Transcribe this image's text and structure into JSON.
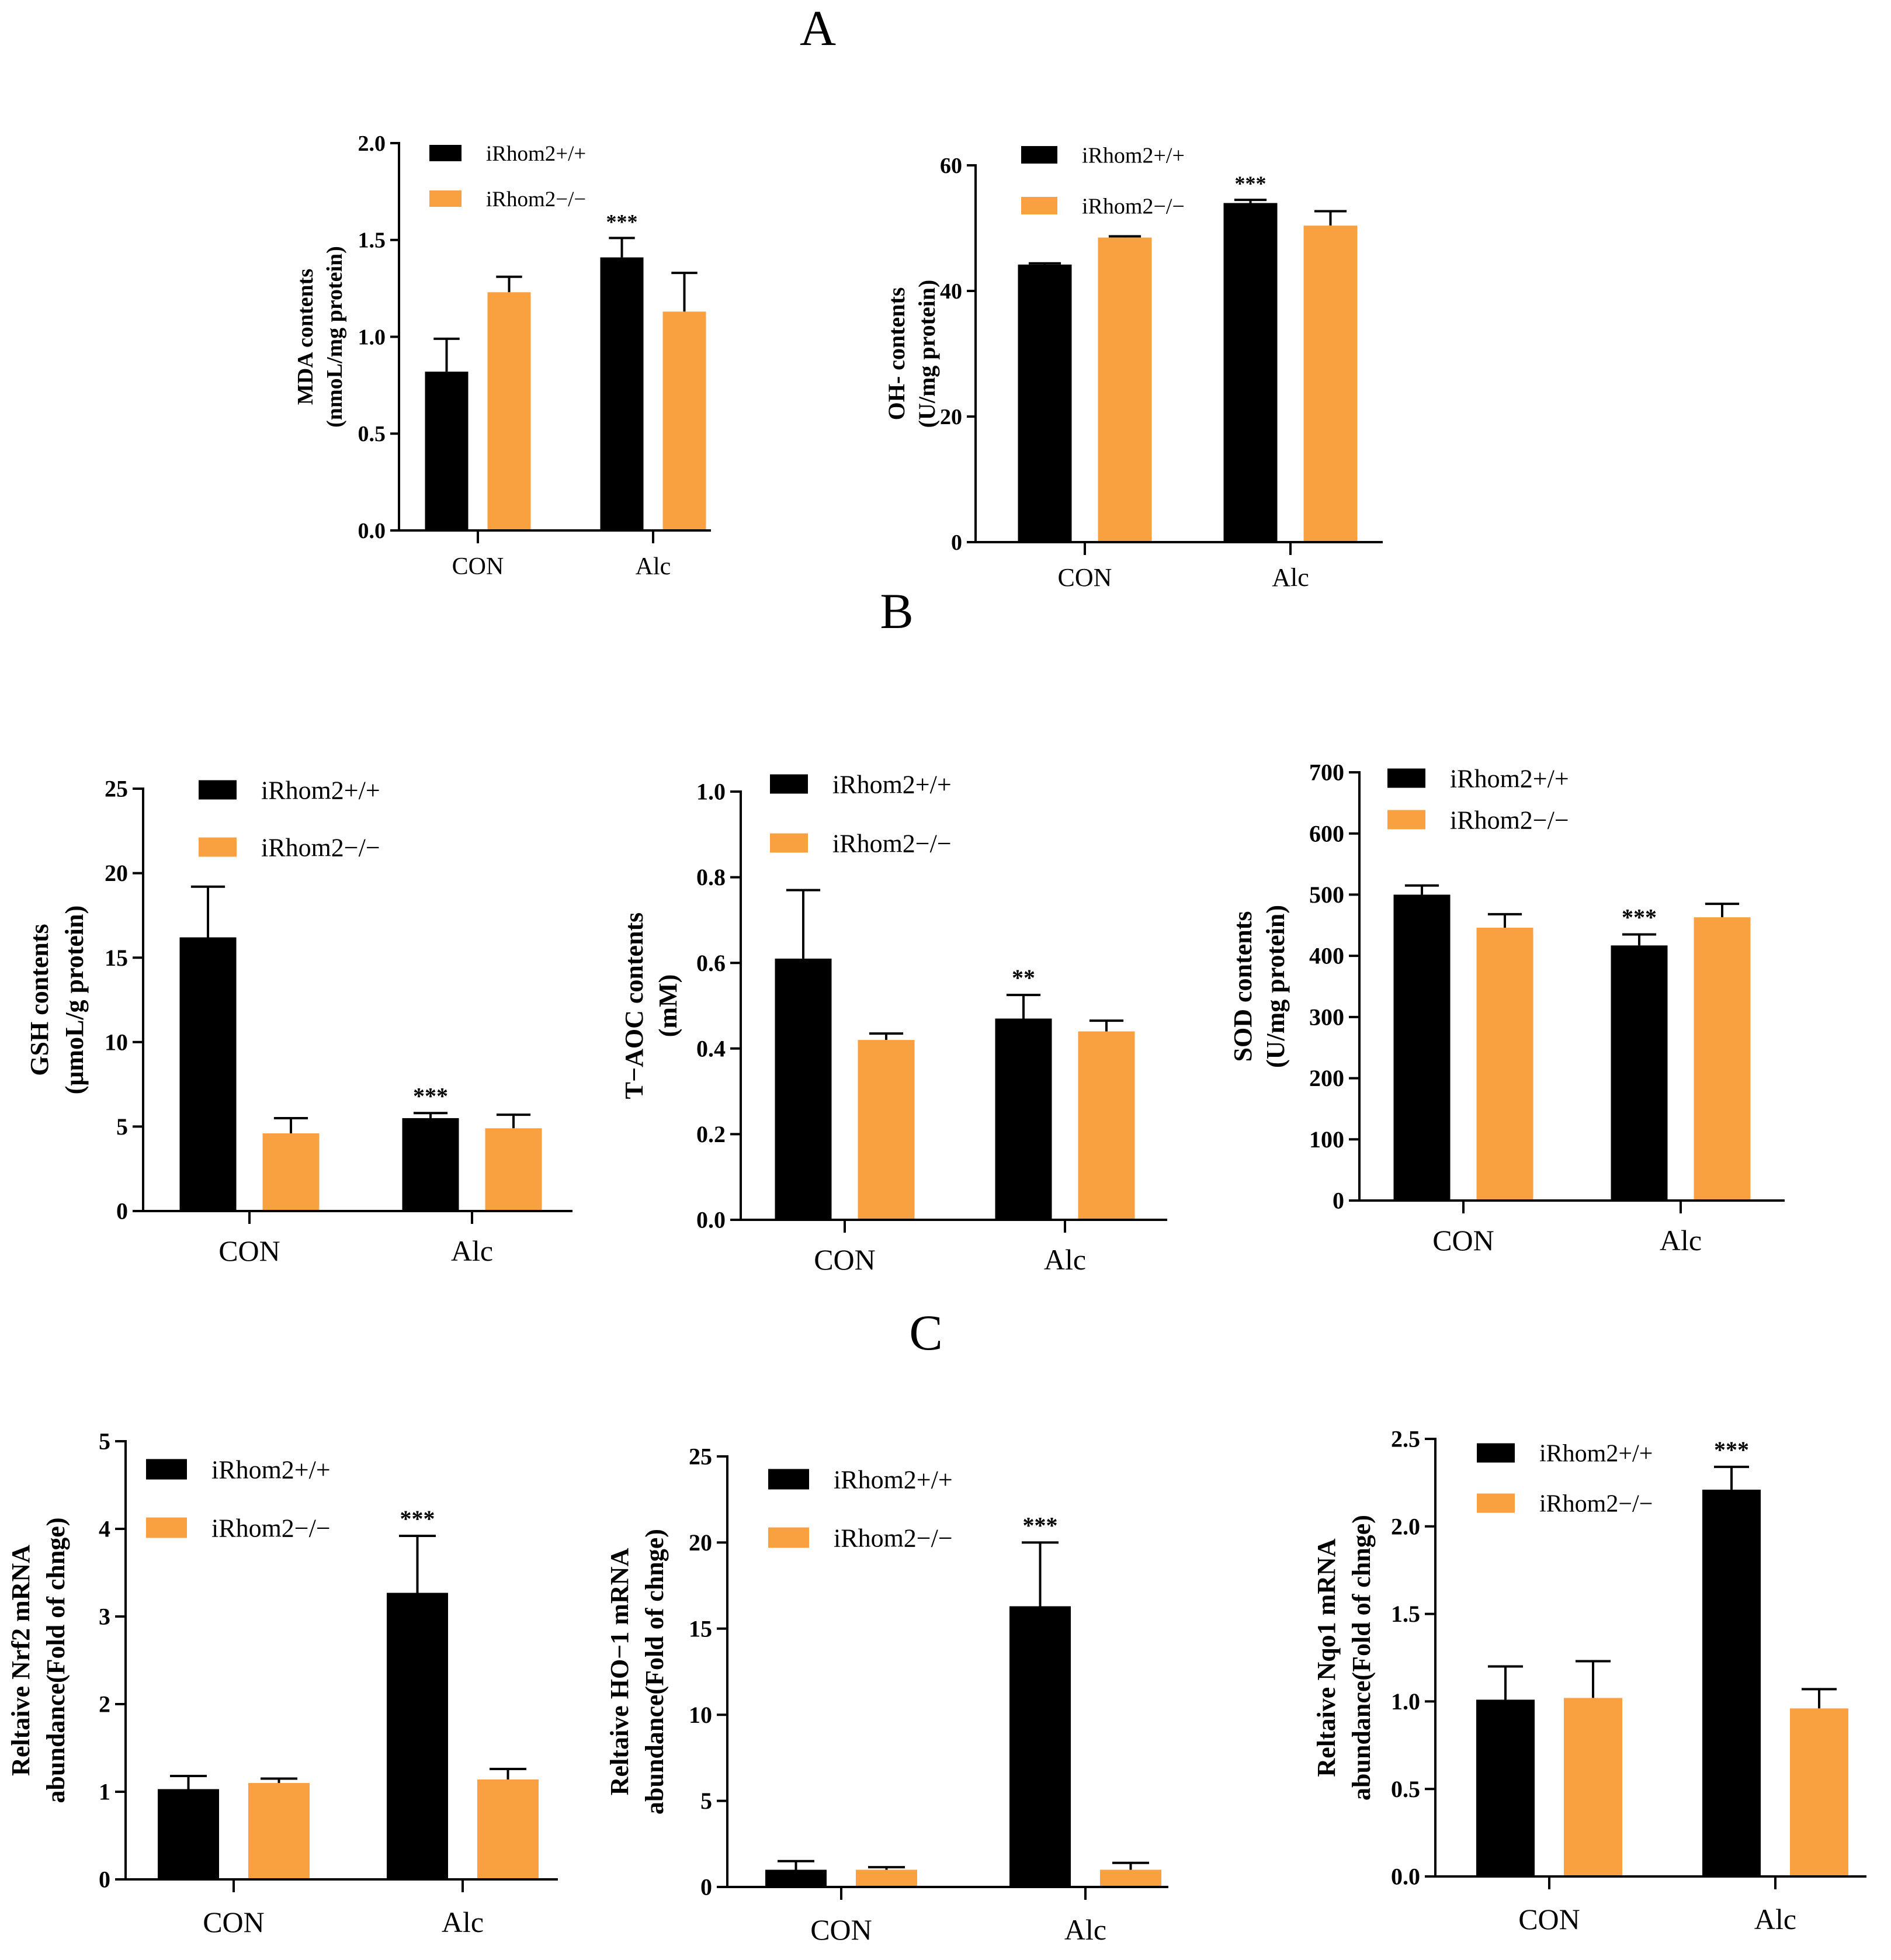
{
  "panels": {
    "A": "A",
    "B": "B",
    "C": "C"
  },
  "colors": {
    "wt": "#000000",
    "ko": "#F9A040"
  },
  "chart_data": [
    {
      "id": "mda",
      "panel": "A",
      "type": "bar",
      "categories": [
        "CON",
        "Alc"
      ],
      "series": [
        {
          "name": "iRhom2+/+",
          "values": [
            0.82,
            1.41
          ],
          "errors": [
            0.17,
            0.1
          ],
          "stars": [
            "",
            "***"
          ]
        },
        {
          "name": "iRhom2−/−",
          "values": [
            1.23,
            1.13
          ],
          "errors": [
            0.08,
            0.2
          ],
          "stars": [
            "",
            ""
          ]
        }
      ],
      "ylabel": [
        "MDA contents",
        "(nmoL/mg protein)"
      ],
      "ylim": [
        0,
        2.0
      ],
      "yticks": [
        0,
        0.5,
        1.0,
        1.5,
        2.0
      ],
      "decimals": 1,
      "legend": "top-left"
    },
    {
      "id": "oh",
      "panel": "A",
      "type": "bar",
      "categories": [
        "CON",
        "Alc"
      ],
      "series": [
        {
          "name": "iRhom2+/+",
          "values": [
            44.2,
            54.0
          ],
          "errors": [
            0.2,
            0.5
          ],
          "stars": [
            "",
            "***"
          ]
        },
        {
          "name": "iRhom2−/−",
          "values": [
            48.5,
            50.4
          ],
          "errors": [
            0.2,
            2.3
          ],
          "stars": [
            "",
            ""
          ]
        }
      ],
      "ylabel": [
        "OH- contents",
        "(U/mg protein)"
      ],
      "ylim": [
        0,
        60
      ],
      "yticks": [
        0,
        20,
        40,
        60
      ],
      "decimals": 0,
      "legend": "top-left"
    },
    {
      "id": "gsh",
      "panel": "B",
      "type": "bar",
      "categories": [
        "CON",
        "Alc"
      ],
      "series": [
        {
          "name": "iRhom2+/+",
          "values": [
            16.2,
            5.5
          ],
          "errors": [
            3.0,
            0.3
          ],
          "stars": [
            "",
            "***"
          ]
        },
        {
          "name": "iRhom2−/−",
          "values": [
            4.6,
            4.9
          ],
          "errors": [
            0.9,
            0.8
          ],
          "stars": [
            "",
            ""
          ]
        }
      ],
      "ylabel": [
        "GSH contents",
        "(μmoL/g protein)"
      ],
      "ylim": [
        0,
        25
      ],
      "yticks": [
        0,
        5,
        10,
        15,
        20,
        25
      ],
      "decimals": 0,
      "legend": "top-left"
    },
    {
      "id": "taoc",
      "panel": "B",
      "type": "bar",
      "categories": [
        "CON",
        "Alc"
      ],
      "series": [
        {
          "name": "iRhom2+/+",
          "values": [
            0.61,
            0.47
          ],
          "errors": [
            0.16,
            0.055
          ],
          "stars": [
            "",
            "**"
          ]
        },
        {
          "name": "iRhom2−/−",
          "values": [
            0.42,
            0.44
          ],
          "errors": [
            0.015,
            0.025
          ],
          "stars": [
            "",
            ""
          ]
        }
      ],
      "ylabel": [
        "T−AOC contents",
        "(mM)"
      ],
      "ylim": [
        0,
        1.0
      ],
      "yticks": [
        0,
        0.2,
        0.4,
        0.6,
        0.8,
        1.0
      ],
      "decimals": 1,
      "legend": "top-left"
    },
    {
      "id": "sod",
      "panel": "B",
      "type": "bar",
      "categories": [
        "CON",
        "Alc"
      ],
      "series": [
        {
          "name": "iRhom2+/+",
          "values": [
            500,
            417
          ],
          "errors": [
            15,
            18
          ],
          "stars": [
            "",
            "***"
          ]
        },
        {
          "name": "iRhom2−/−",
          "values": [
            446,
            463
          ],
          "errors": [
            22,
            22
          ],
          "stars": [
            "",
            ""
          ]
        }
      ],
      "ylabel": [
        "SOD contents",
        "(U/mg protein)"
      ],
      "ylim": [
        0,
        700
      ],
      "yticks": [
        0,
        100,
        200,
        300,
        400,
        500,
        600,
        700
      ],
      "decimals": 0,
      "legend": "top-left"
    },
    {
      "id": "nrf2",
      "panel": "C",
      "type": "bar",
      "categories": [
        "CON",
        "Alc"
      ],
      "series": [
        {
          "name": "iRhom2+/+",
          "values": [
            1.03,
            3.27
          ],
          "errors": [
            0.15,
            0.65
          ],
          "stars": [
            "",
            "***"
          ]
        },
        {
          "name": "iRhom2−/−",
          "values": [
            1.1,
            1.14
          ],
          "errors": [
            0.05,
            0.12
          ],
          "stars": [
            "",
            ""
          ]
        }
      ],
      "ylabel": [
        "Reltaive Nrf2  mRNA",
        "abundance(Fold of chnge)"
      ],
      "ylim": [
        0,
        5
      ],
      "yticks": [
        0,
        1,
        2,
        3,
        4,
        5
      ],
      "decimals": 0,
      "legend": "top-left"
    },
    {
      "id": "ho1",
      "panel": "C",
      "type": "bar",
      "categories": [
        "CON",
        "Alc"
      ],
      "series": [
        {
          "name": "iRhom2+/+",
          "values": [
            1.0,
            16.3
          ],
          "errors": [
            0.5,
            3.7
          ],
          "stars": [
            "",
            "***"
          ]
        },
        {
          "name": "iRhom2−/−",
          "values": [
            1.0,
            1.0
          ],
          "errors": [
            0.15,
            0.4
          ],
          "stars": [
            "",
            ""
          ]
        }
      ],
      "ylabel": [
        "Reltaive HO−1  mRNA",
        "abundance(Fold of chnge)"
      ],
      "ylim": [
        0,
        25
      ],
      "yticks": [
        0,
        5,
        10,
        15,
        20,
        25
      ],
      "decimals": 0,
      "legend": "top-left"
    },
    {
      "id": "nqo1",
      "panel": "C",
      "type": "bar",
      "categories": [
        "CON",
        "Alc"
      ],
      "series": [
        {
          "name": "iRhom2+/+",
          "values": [
            1.01,
            2.21
          ],
          "errors": [
            0.19,
            0.13
          ],
          "stars": [
            "",
            "***"
          ]
        },
        {
          "name": "iRhom2−/−",
          "values": [
            1.02,
            0.96
          ],
          "errors": [
            0.21,
            0.11
          ],
          "stars": [
            "",
            ""
          ]
        }
      ],
      "ylabel": [
        "Reltaive Nqo1  mRNA",
        "abundance(Fold of chnge)"
      ],
      "ylim": [
        0,
        2.5
      ],
      "yticks": [
        0,
        0.5,
        1.0,
        1.5,
        2.0,
        2.5
      ],
      "decimals": 1,
      "legend": "top-left"
    }
  ]
}
